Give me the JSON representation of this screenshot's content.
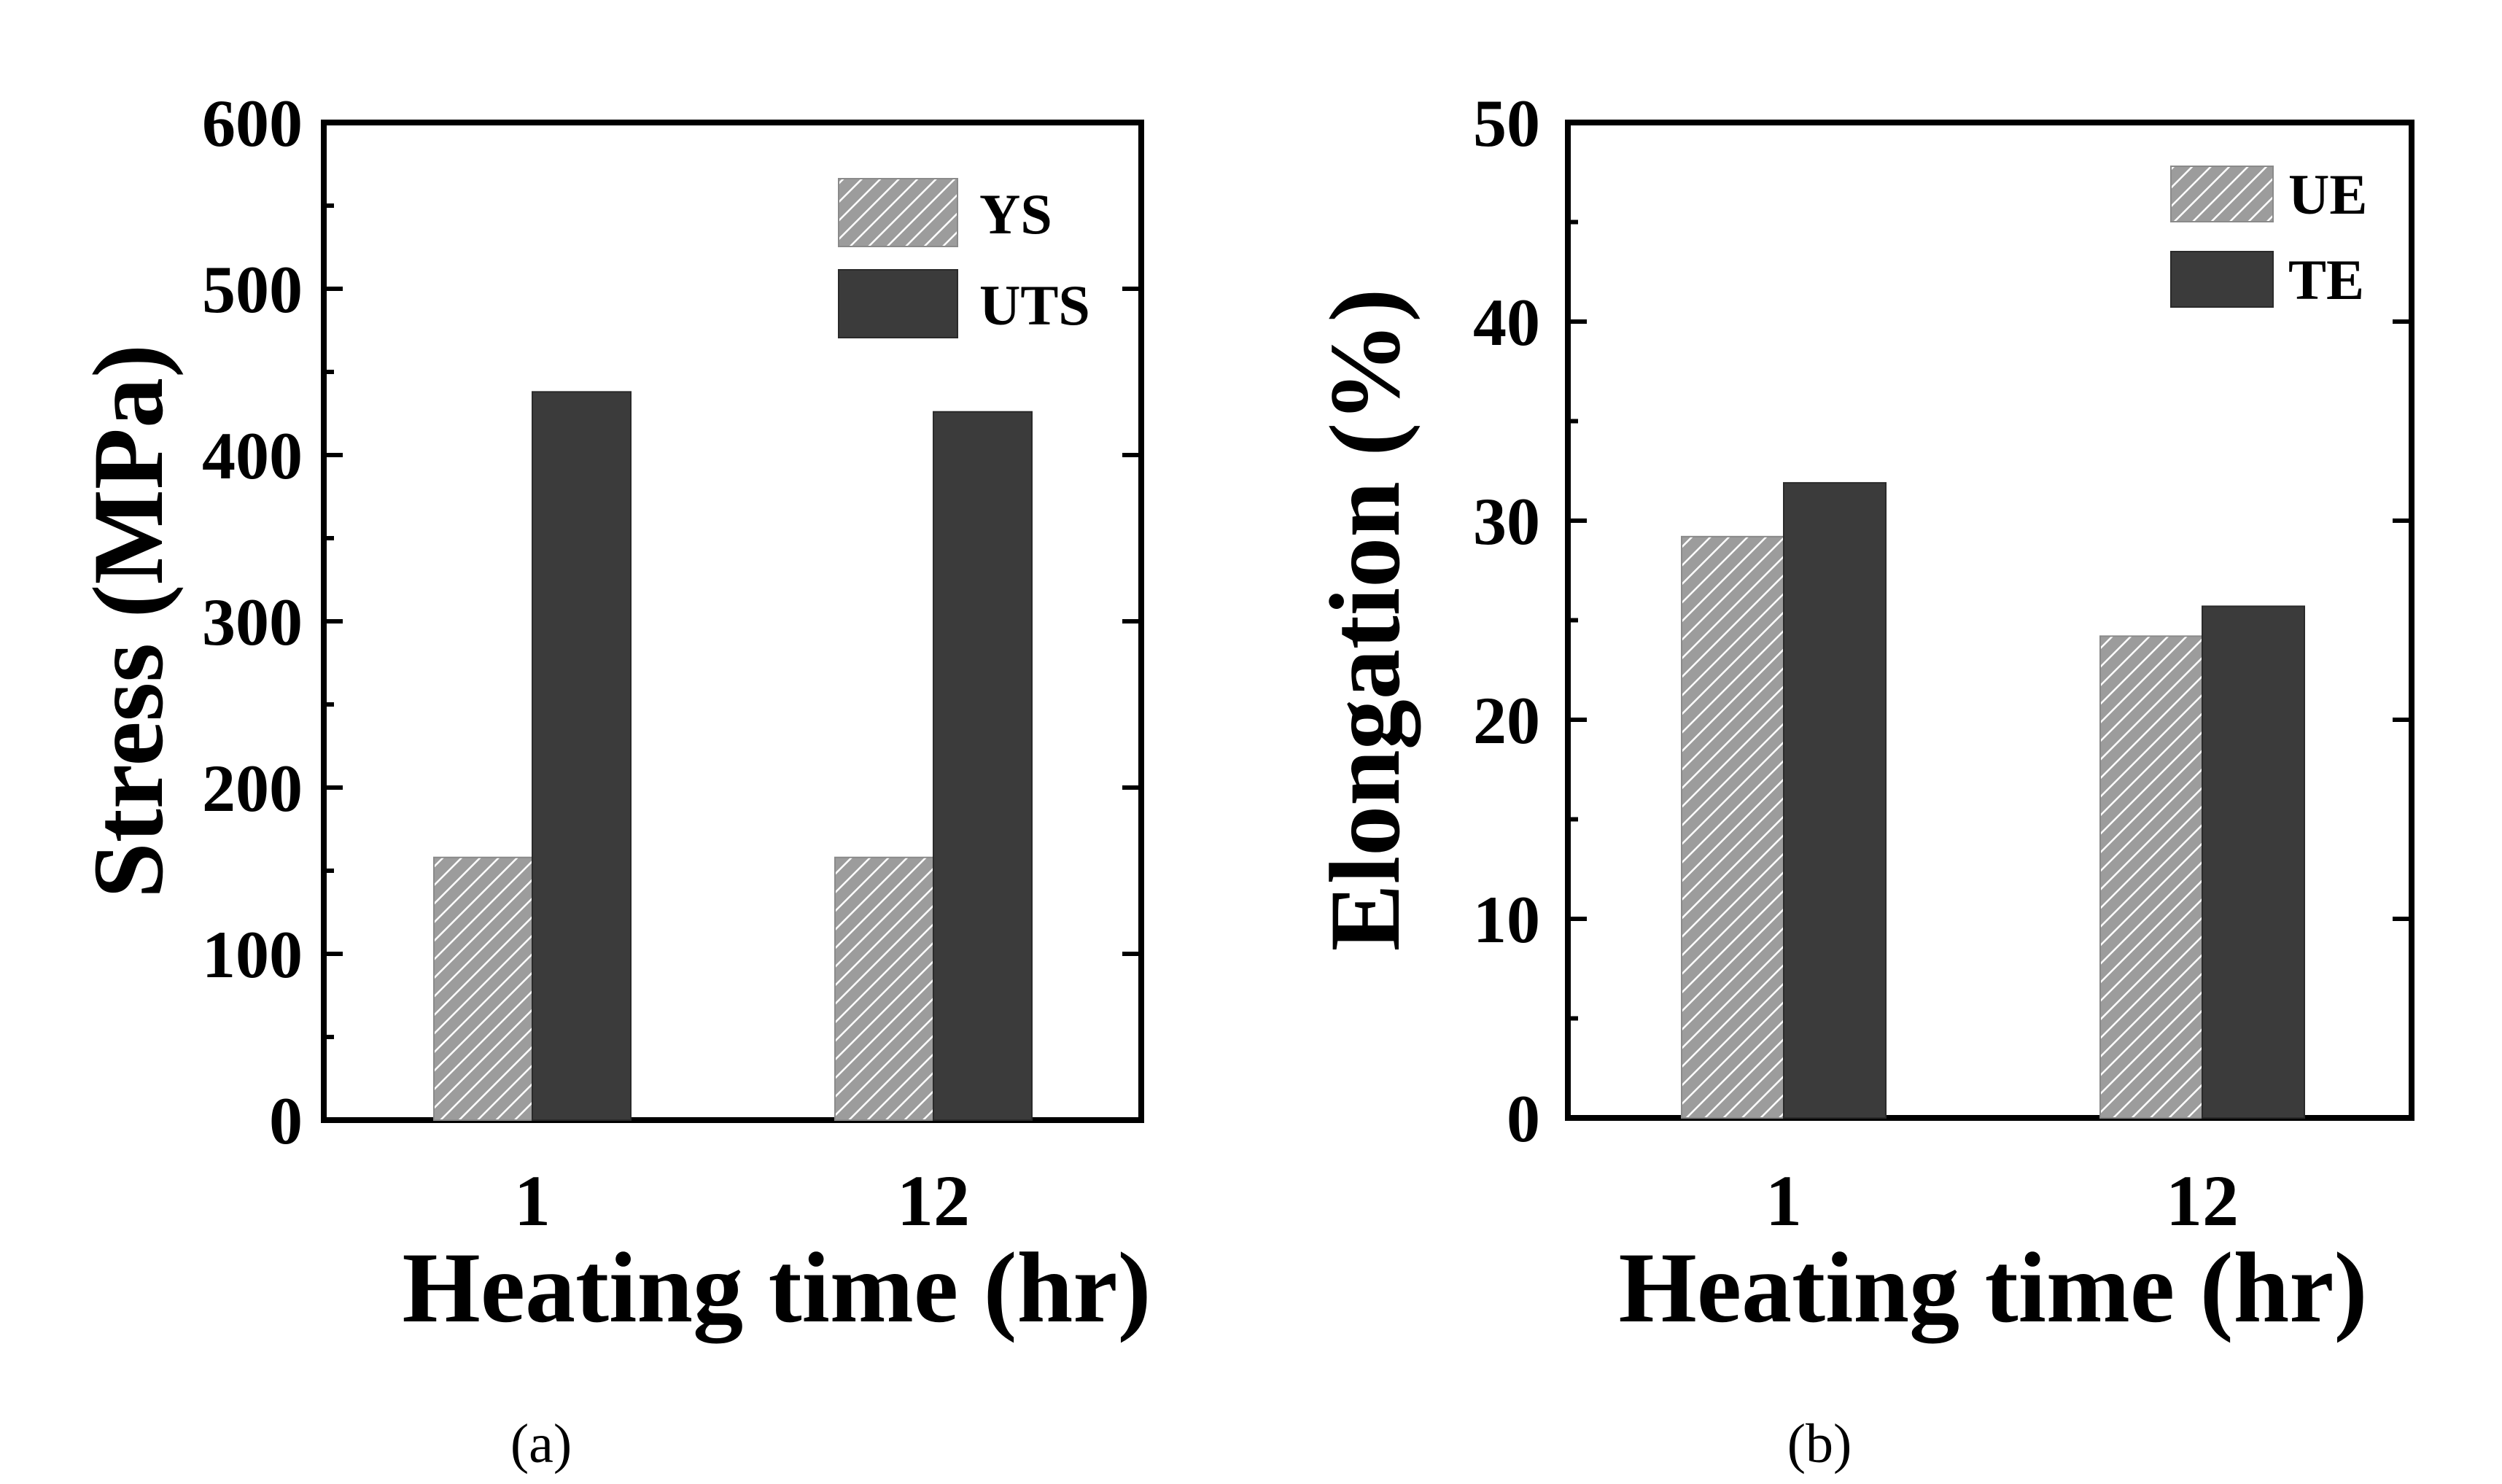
{
  "chart_data": [
    {
      "type": "bar",
      "categories": [
        "1",
        "12"
      ],
      "series": [
        {
          "name": "YS",
          "values": [
            158,
            158
          ],
          "pattern": "hatched",
          "color": "#8a8a8a"
        },
        {
          "name": "UTS",
          "values": [
            438,
            426
          ],
          "pattern": "solid",
          "color": "#3b3b3b"
        }
      ],
      "ylim": [
        0,
        600
      ],
      "yticks": [
        "0",
        "100",
        "200",
        "300",
        "400",
        "500",
        "600"
      ],
      "xlabel": "Heating time (hr)",
      "ylabel": "Stress (MPa)",
      "legend": "top-right",
      "caption": "(a)"
    },
    {
      "type": "bar",
      "categories": [
        "1",
        "12"
      ],
      "series": [
        {
          "name": "UE",
          "values": [
            29.2,
            24.2
          ],
          "pattern": "hatched",
          "color": "#8a8a8a"
        },
        {
          "name": "TE",
          "values": [
            31.9,
            25.7
          ],
          "pattern": "solid",
          "color": "#3b3b3b"
        }
      ],
      "ylim": [
        0,
        50
      ],
      "yticks": [
        "0",
        "10",
        "20",
        "30",
        "40",
        "50"
      ],
      "xlabel": "Heating time (hr)",
      "ylabel": "Elongation (%)",
      "legend": "top-right",
      "caption": "(b)"
    }
  ]
}
